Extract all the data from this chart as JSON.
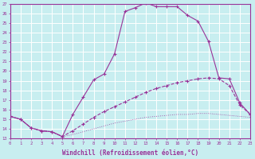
{
  "xlabel": "Windchill (Refroidissement éolien,°C)",
  "bg_color": "#c8eef0",
  "line_color": "#993399",
  "grid_color": "#ffffff",
  "x_min": 0,
  "x_max": 23,
  "y_min": 13,
  "y_max": 27,
  "curve1_x": [
    0,
    1,
    2,
    3,
    4,
    5,
    6,
    7,
    8,
    9,
    10,
    11,
    12,
    13,
    14,
    15,
    16,
    17,
    18,
    19,
    20,
    21,
    22,
    23
  ],
  "curve1_y": [
    15.3,
    15.0,
    14.1,
    13.8,
    13.7,
    13.2,
    15.5,
    17.3,
    19.1,
    19.7,
    21.8,
    26.2,
    26.6,
    27.1,
    26.7,
    26.7,
    26.7,
    25.8,
    25.2,
    23.1,
    19.3,
    19.2,
    16.7,
    15.5
  ],
  "curve2_x": [
    0,
    1,
    2,
    3,
    4,
    5,
    6,
    7,
    8,
    9,
    10,
    11,
    12,
    13,
    14,
    15,
    16,
    17,
    18,
    19,
    20,
    21,
    22,
    23
  ],
  "curve2_y": [
    15.3,
    15.0,
    14.1,
    13.8,
    13.7,
    13.2,
    13.8,
    14.5,
    15.2,
    15.8,
    16.3,
    16.8,
    17.3,
    17.8,
    18.2,
    18.5,
    18.8,
    19.0,
    19.2,
    19.3,
    19.2,
    18.5,
    16.5,
    15.5
  ],
  "curve3_x": [
    0,
    1,
    2,
    3,
    4,
    5,
    6,
    7,
    8,
    9,
    10,
    11,
    12,
    13,
    14,
    15,
    16,
    17,
    18,
    19,
    20,
    21,
    22,
    23
  ],
  "curve3_y": [
    15.3,
    15.0,
    14.1,
    13.8,
    13.7,
    13.2,
    13.4,
    13.7,
    14.0,
    14.3,
    14.6,
    14.8,
    15.0,
    15.2,
    15.3,
    15.4,
    15.5,
    15.5,
    15.6,
    15.6,
    15.5,
    15.4,
    15.3,
    15.2
  ]
}
